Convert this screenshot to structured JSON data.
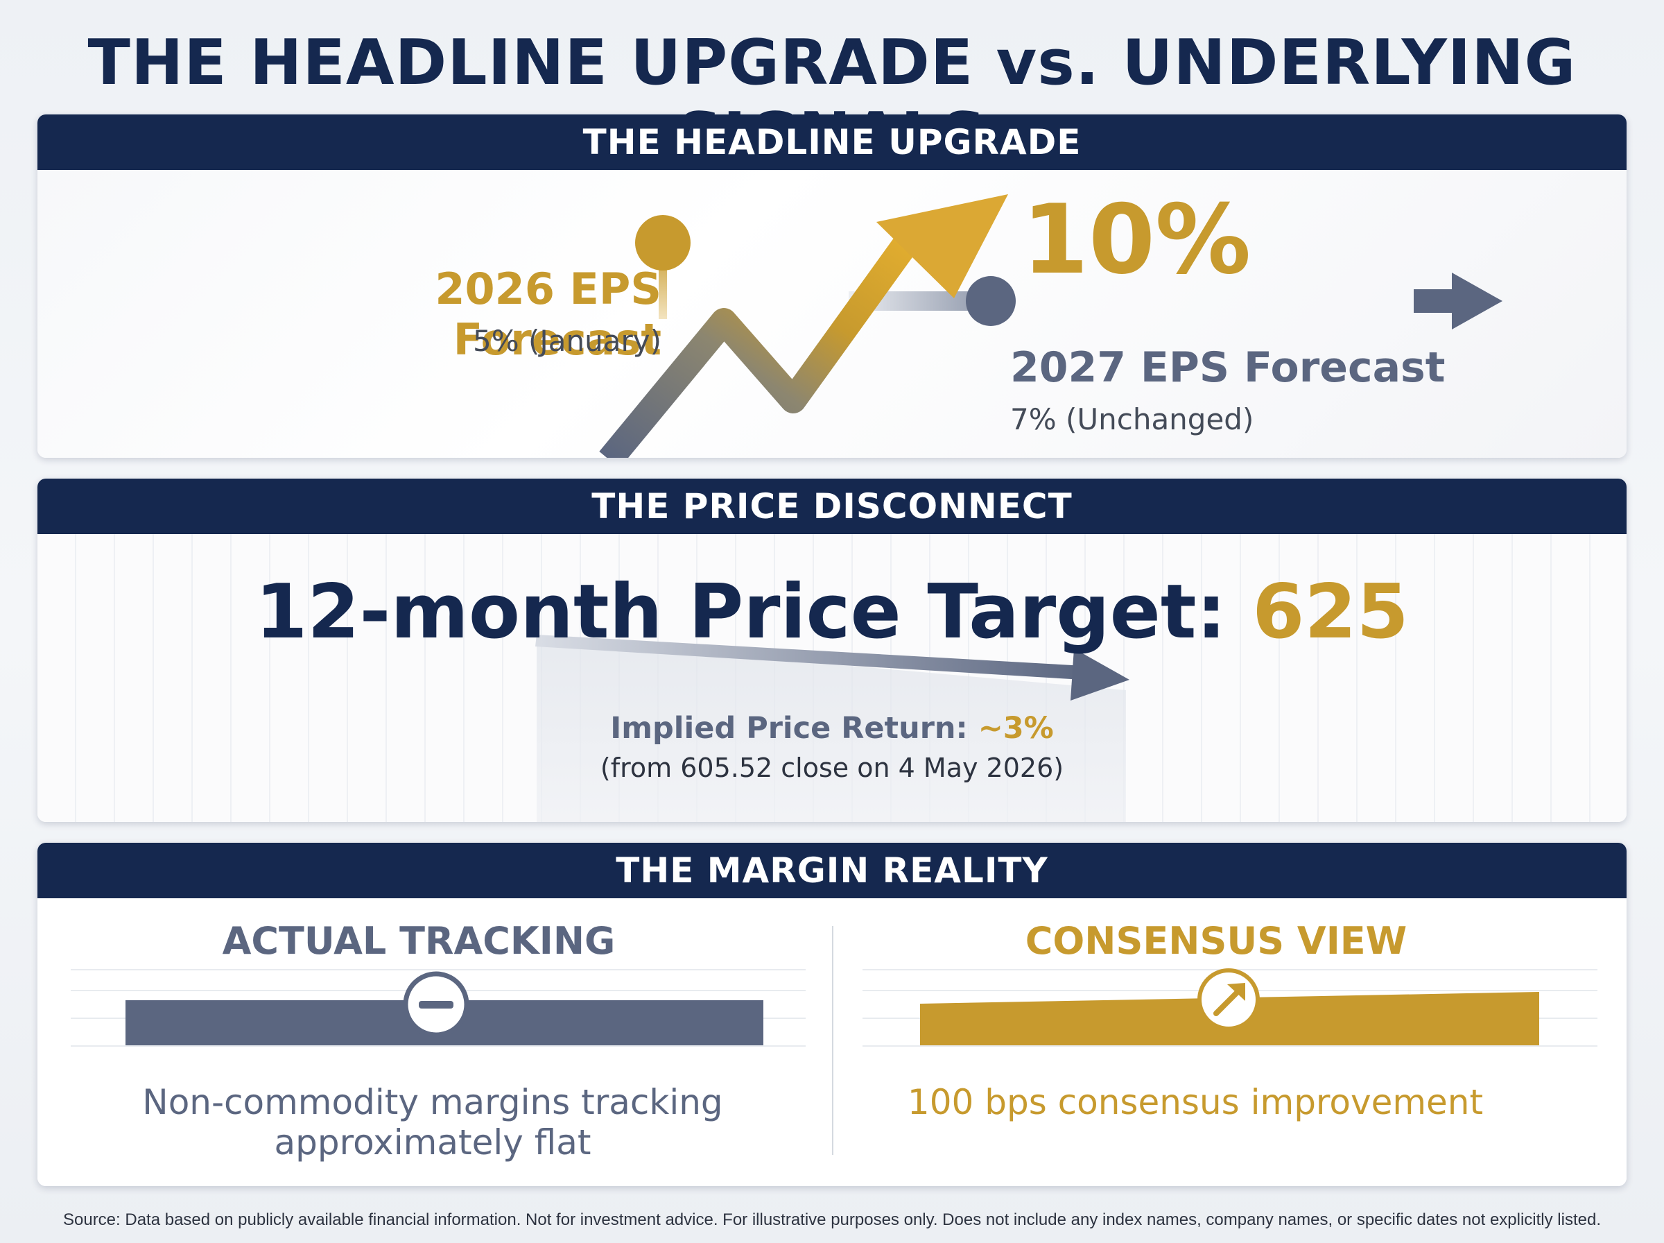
{
  "title": "THE HEADLINE UPGRADE vs. UNDERLYING SIGNALS",
  "colors": {
    "navy": "#15284f",
    "gold": "#c79a2e",
    "slate": "#5b6680"
  },
  "headline_upgrade": {
    "header": "THE HEADLINE UPGRADE",
    "forecast_2026": {
      "label": "2026 EPS Forecast",
      "detail": "5% (January)"
    },
    "new_value": "10%",
    "forecast_2027": {
      "label": "2027 EPS Forecast",
      "detail": "7% (Unchanged)"
    },
    "icons": [
      "upward-trend-arrow-icon",
      "right-arrow-icon"
    ]
  },
  "price_disconnect": {
    "header": "THE PRICE DISCONNECT",
    "target_label": "12-month Price Target:",
    "target_value": "625",
    "return_label": "Implied Price Return:",
    "return_value": "~3%",
    "return_note": "(from 605.52 close on 4 May 2026)",
    "icons": [
      "shallow-right-arrow-icon"
    ]
  },
  "margin_reality": {
    "header": "THE MARGIN REALITY",
    "actual": {
      "title": "ACTUAL TRACKING",
      "description_line1": "Non-commodity margins tracking",
      "description_line2": "approximately flat",
      "icon": "minus-circle-icon"
    },
    "consensus": {
      "title": "CONSENSUS VIEW",
      "description": "100 bps consensus improvement",
      "icon": "up-right-arrow-circle-icon"
    }
  },
  "source": "Source: Data based on publicly available financial information. Not for investment advice. For illustrative purposes only. Does not include any index names, company names, or specific dates not explicitly listed."
}
